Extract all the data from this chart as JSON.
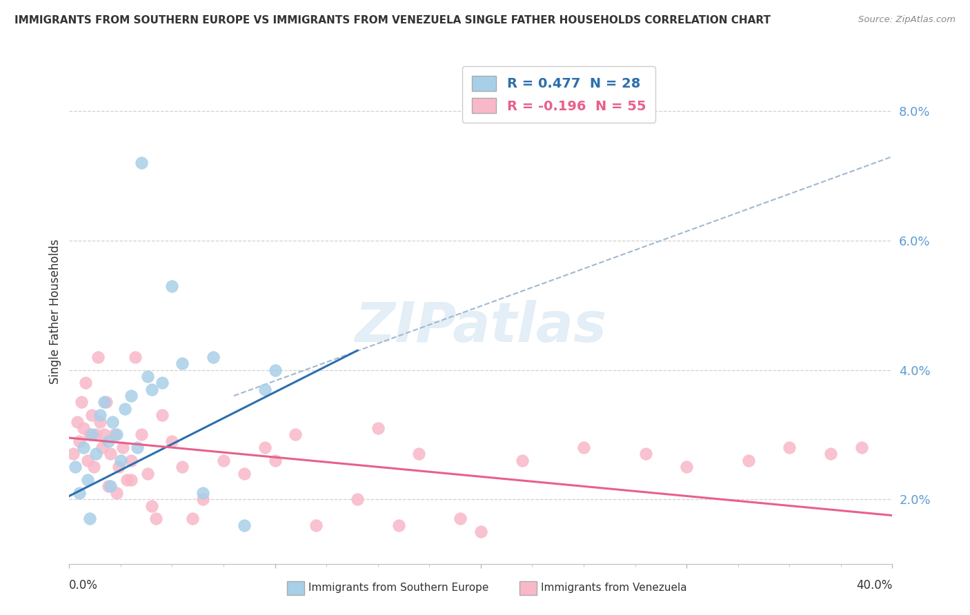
{
  "title": "IMMIGRANTS FROM SOUTHERN EUROPE VS IMMIGRANTS FROM VENEZUELA SINGLE FATHER HOUSEHOLDS CORRELATION CHART",
  "source": "Source: ZipAtlas.com",
  "ylabel": "Single Father Households",
  "ytick_vals": [
    2.0,
    4.0,
    6.0,
    8.0
  ],
  "xmin": 0.0,
  "xmax": 40.0,
  "ymin": 1.0,
  "ymax": 8.8,
  "legend_blue_label": "R = 0.477  N = 28",
  "legend_pink_label": "R = -0.196  N = 55",
  "blue_color": "#a8cfe8",
  "pink_color": "#f9b8c8",
  "blue_line_color": "#2c6fad",
  "pink_line_color": "#e8608a",
  "dashed_line_color": "#a0b8d0",
  "blue_scatter_x": [
    3.5,
    0.3,
    0.5,
    0.7,
    0.9,
    1.1,
    1.3,
    1.5,
    1.7,
    1.9,
    2.1,
    2.3,
    2.5,
    2.7,
    3.0,
    3.3,
    3.8,
    4.5,
    5.0,
    5.5,
    7.0,
    9.5,
    10.0,
    1.0,
    2.0,
    4.0,
    6.5,
    8.5
  ],
  "blue_scatter_y": [
    7.2,
    2.5,
    2.1,
    2.8,
    2.3,
    3.0,
    2.7,
    3.3,
    3.5,
    2.9,
    3.2,
    3.0,
    2.6,
    3.4,
    3.6,
    2.8,
    3.9,
    3.8,
    5.3,
    4.1,
    4.2,
    3.7,
    4.0,
    1.7,
    2.2,
    3.7,
    2.1,
    1.6
  ],
  "pink_scatter_x": [
    0.2,
    0.4,
    0.5,
    0.6,
    0.7,
    0.8,
    0.9,
    1.0,
    1.1,
    1.2,
    1.3,
    1.4,
    1.5,
    1.6,
    1.7,
    1.8,
    2.0,
    2.2,
    2.4,
    2.6,
    2.8,
    3.0,
    3.2,
    3.5,
    3.8,
    4.0,
    4.5,
    5.0,
    5.5,
    6.5,
    7.5,
    8.5,
    9.5,
    11.0,
    12.0,
    14.0,
    15.0,
    17.0,
    19.0,
    22.0,
    25.0,
    28.0,
    30.0,
    33.0,
    35.0,
    37.0,
    38.5,
    3.0,
    1.9,
    2.3,
    4.2,
    6.0,
    10.0,
    16.0,
    20.0
  ],
  "pink_scatter_y": [
    2.7,
    3.2,
    2.9,
    3.5,
    3.1,
    3.8,
    2.6,
    3.0,
    3.3,
    2.5,
    3.0,
    4.2,
    3.2,
    2.8,
    3.0,
    3.5,
    2.7,
    3.0,
    2.5,
    2.8,
    2.3,
    2.6,
    4.2,
    3.0,
    2.4,
    1.9,
    3.3,
    2.9,
    2.5,
    2.0,
    2.6,
    2.4,
    2.8,
    3.0,
    1.6,
    2.0,
    3.1,
    2.7,
    1.7,
    2.6,
    2.8,
    2.7,
    2.5,
    2.6,
    2.8,
    2.7,
    2.8,
    2.3,
    2.2,
    2.1,
    1.7,
    1.7,
    2.6,
    1.6,
    1.5
  ],
  "blue_line_x0": 0.0,
  "blue_line_x1": 14.0,
  "blue_line_y0": 2.05,
  "blue_line_y1": 4.3,
  "pink_line_x0": 0.0,
  "pink_line_x1": 40.0,
  "pink_line_y0": 2.95,
  "pink_line_y1": 1.75,
  "dashed_line_x0": 8.0,
  "dashed_line_x1": 40.0,
  "dashed_line_y0": 3.6,
  "dashed_line_y1": 7.3,
  "watermark_text": "ZIPatlas",
  "background_color": "#ffffff",
  "grid_color": "#d0d0d0"
}
